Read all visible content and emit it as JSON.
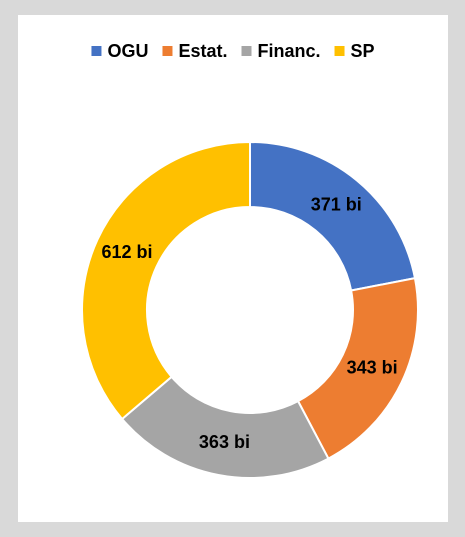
{
  "chart_data": {
    "type": "donut",
    "categories": [
      "OGU",
      "Estat.",
      "Financ.",
      "SP"
    ],
    "values": [
      371,
      343,
      363,
      612
    ],
    "value_labels": [
      "371 bi",
      "343 bi",
      "363 bi",
      "612 bi"
    ],
    "colors": [
      "#4472c4",
      "#ed7d31",
      "#a5a5a5",
      "#ffc000"
    ],
    "legend": "top"
  }
}
